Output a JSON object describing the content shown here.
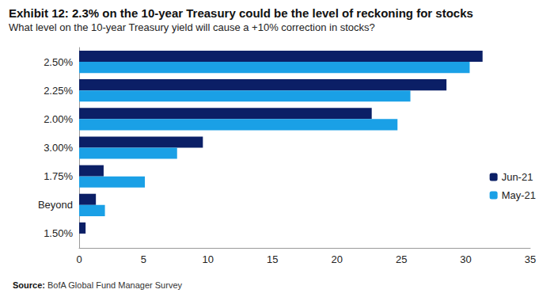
{
  "chart_data": {
    "type": "bar",
    "orientation": "horizontal",
    "title": "Exhibit 12: 2.3% on the 10-year Treasury could be the level of reckoning for stocks",
    "subtitle": "What level on the 10-year Treasury yield will cause a +10% correction in stocks?",
    "source": "Source: BofA Global Fund Manager Survey",
    "categories": [
      "2.50%",
      "2.25%",
      "2.00%",
      "3.00%",
      "1.75%",
      "Beyond",
      "1.50%"
    ],
    "series": [
      {
        "name": "Jun-21",
        "color": "#0b1f66",
        "values": [
          31.3,
          28.5,
          22.7,
          9.6,
          1.9,
          1.3,
          0.5
        ]
      },
      {
        "name": "May-21",
        "color": "#1aa0e6",
        "values": [
          30.3,
          25.7,
          24.7,
          7.6,
          5.1,
          2.0,
          0
        ]
      }
    ],
    "xlim": [
      0,
      35
    ],
    "xticks": [
      0,
      5,
      10,
      15,
      20,
      25,
      30,
      35
    ],
    "grid": false,
    "legend": "right"
  }
}
